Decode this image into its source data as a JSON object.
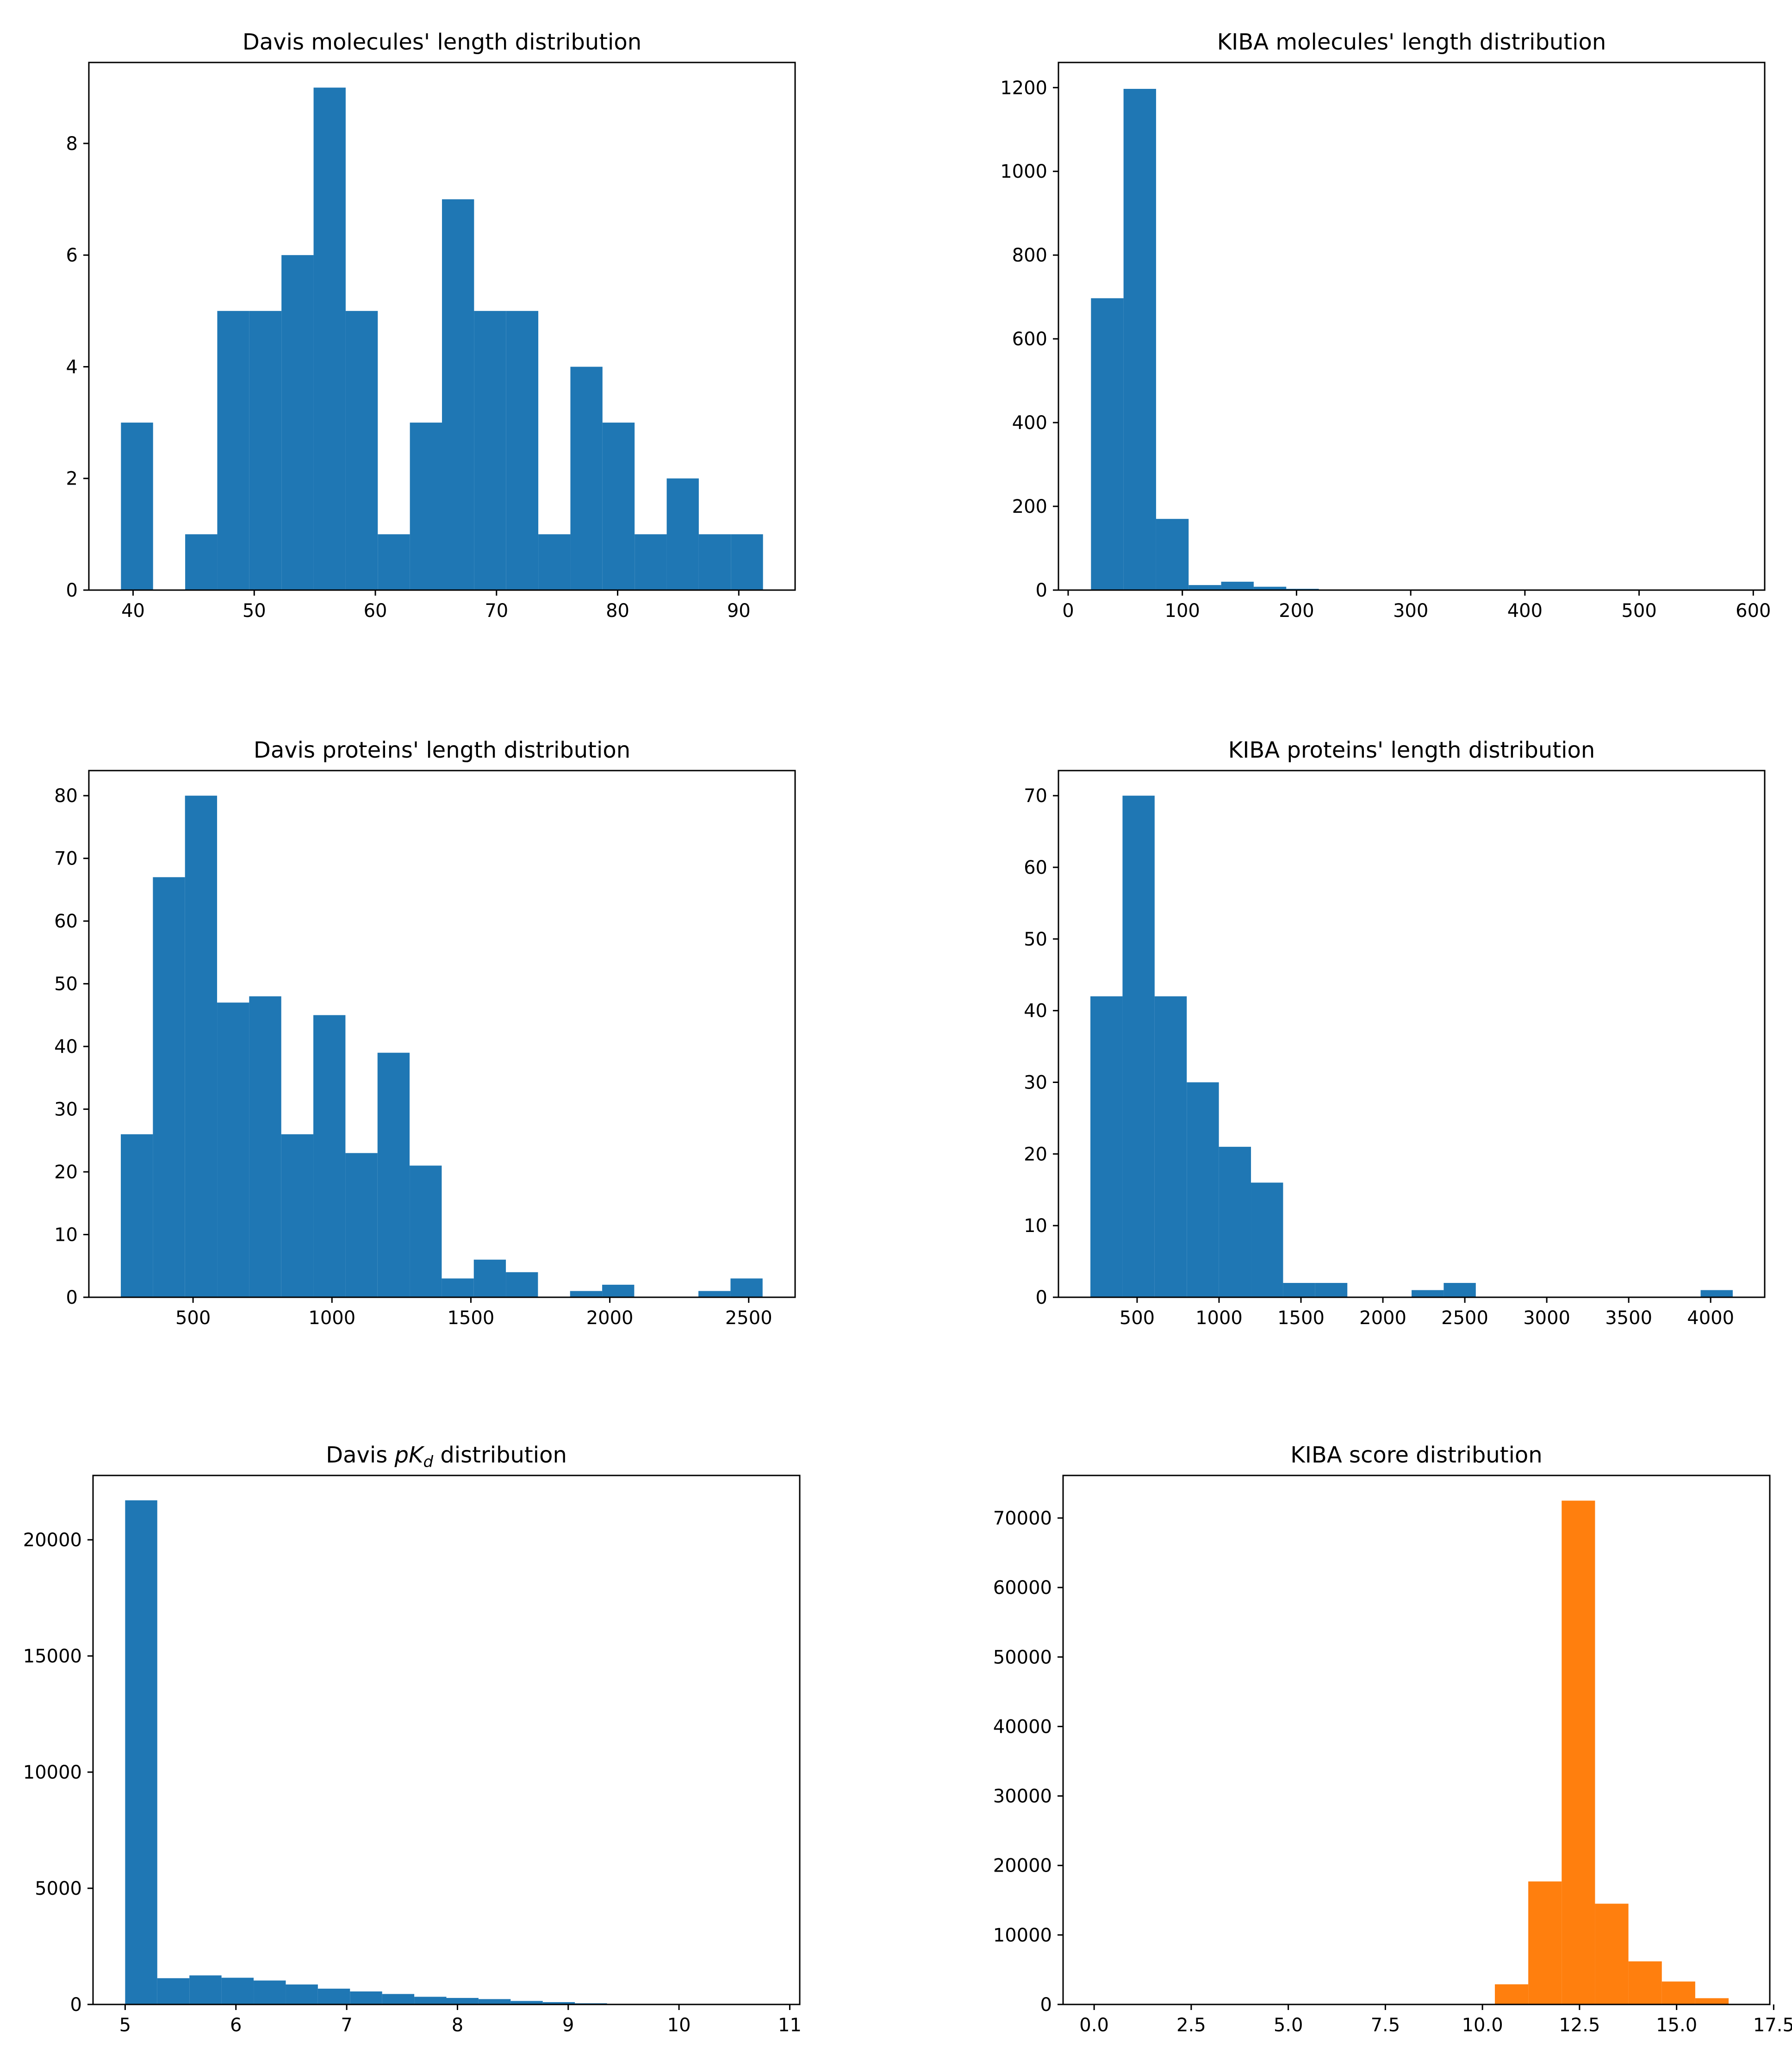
{
  "chart_data": [
    {
      "id": "davis-molecules",
      "type": "bar",
      "title": "Davis molecules' length distribution",
      "xlabel": "",
      "ylabel": "",
      "color": "#1f77b4",
      "xlim": [
        36.35,
        94.65
      ],
      "ylim": [
        0,
        9.45
      ],
      "xticks": [
        40,
        50,
        60,
        70,
        80,
        90
      ],
      "yticks": [
        0,
        2,
        4,
        6,
        8
      ],
      "bin_start": 39,
      "bin_width": 2.65,
      "values": [
        3,
        0,
        1,
        5,
        5,
        6,
        9,
        5,
        1,
        3,
        7,
        5,
        5,
        1,
        4,
        3,
        1,
        2,
        1,
        1
      ]
    },
    {
      "id": "kiba-molecules",
      "type": "bar",
      "title": "KIBA molecules' length distribution",
      "xlabel": "",
      "ylabel": "",
      "color": "#1f77b4",
      "xlim": [
        -8.5,
        610
      ],
      "ylim": [
        0,
        1260
      ],
      "xticks": [
        0,
        100,
        200,
        300,
        400,
        500,
        600
      ],
      "yticks": [
        0,
        200,
        400,
        600,
        800,
        1000,
        1200
      ],
      "bin_start": 20,
      "bin_width": 28.5,
      "values": [
        697,
        1197,
        170,
        12,
        20,
        8,
        3,
        1,
        1,
        1,
        0,
        0,
        0,
        0,
        0,
        0,
        0,
        0,
        0,
        1
      ]
    },
    {
      "id": "davis-proteins",
      "type": "bar",
      "title": "Davis proteins' length distribution",
      "xlabel": "",
      "ylabel": "",
      "color": "#1f77b4",
      "xlim": [
        125,
        2667
      ],
      "ylim": [
        0,
        84
      ],
      "xticks": [
        500,
        1000,
        1500,
        2000,
        2500
      ],
      "yticks": [
        0,
        10,
        20,
        30,
        40,
        50,
        60,
        70,
        80
      ],
      "bin_start": 240,
      "bin_width": 115.5,
      "values": [
        26,
        67,
        80,
        47,
        48,
        26,
        45,
        23,
        39,
        21,
        3,
        6,
        4,
        0,
        1,
        2,
        0,
        0,
        1,
        3
      ]
    },
    {
      "id": "kiba-proteins",
      "type": "bar",
      "title": "KIBA proteins' length distribution",
      "xlabel": "",
      "ylabel": "",
      "color": "#1f77b4",
      "xlim": [
        20,
        4330
      ],
      "ylim": [
        0,
        73.5
      ],
      "xticks": [
        500,
        1000,
        1500,
        2000,
        2500,
        3000,
        3500,
        4000
      ],
      "yticks": [
        0,
        10,
        20,
        30,
        40,
        50,
        60,
        70
      ],
      "bin_start": 215,
      "bin_width": 196,
      "values": [
        42,
        70,
        42,
        30,
        21,
        16,
        2,
        2,
        0,
        0,
        1,
        2,
        0,
        0,
        0,
        0,
        0,
        0,
        0,
        1
      ]
    },
    {
      "id": "davis-pkd",
      "type": "bar",
      "title_parts": [
        "Davis ",
        "pK",
        "d",
        " distribution"
      ],
      "xlabel": "",
      "ylabel": "",
      "color": "#1f77b4",
      "xlim": [
        4.71,
        11.09
      ],
      "ylim": [
        0,
        22770
      ],
      "xticks": [
        5,
        6,
        7,
        8,
        9,
        10,
        11
      ],
      "yticks": [
        0,
        5000,
        10000,
        15000,
        20000
      ],
      "bin_start": 5,
      "bin_width": 0.29,
      "values": [
        21700,
        1130,
        1250,
        1150,
        1030,
        860,
        680,
        560,
        450,
        330,
        280,
        230,
        150,
        100,
        50,
        30,
        20,
        10,
        5,
        5
      ]
    },
    {
      "id": "kiba-score",
      "type": "bar",
      "title": "KIBA score distribution",
      "xlabel": "",
      "ylabel": "",
      "color": "#ff7f0e",
      "xlim": [
        -0.8,
        17.4
      ],
      "ylim": [
        0,
        76125
      ],
      "xticks": [
        0.0,
        2.5,
        5.0,
        7.5,
        10.0,
        12.5,
        15.0,
        17.5
      ],
      "ytick_labels": [
        "0",
        "10000",
        "20000",
        "30000",
        "40000",
        "50000",
        "60000",
        "70000"
      ],
      "yticks": [
        0,
        10000,
        20000,
        30000,
        40000,
        50000,
        60000,
        70000
      ],
      "xtick_labels": [
        "0.0",
        "2.5",
        "5.0",
        "7.5",
        "10.0",
        "12.5",
        "15.0",
        "17.5"
      ],
      "bin_start": 0,
      "bin_width": 0.86,
      "values": [
        0,
        0,
        0,
        0,
        0,
        0,
        0,
        0,
        0,
        0,
        0,
        50,
        2900,
        17700,
        72500,
        14500,
        6200,
        3300,
        900,
        50
      ]
    }
  ]
}
